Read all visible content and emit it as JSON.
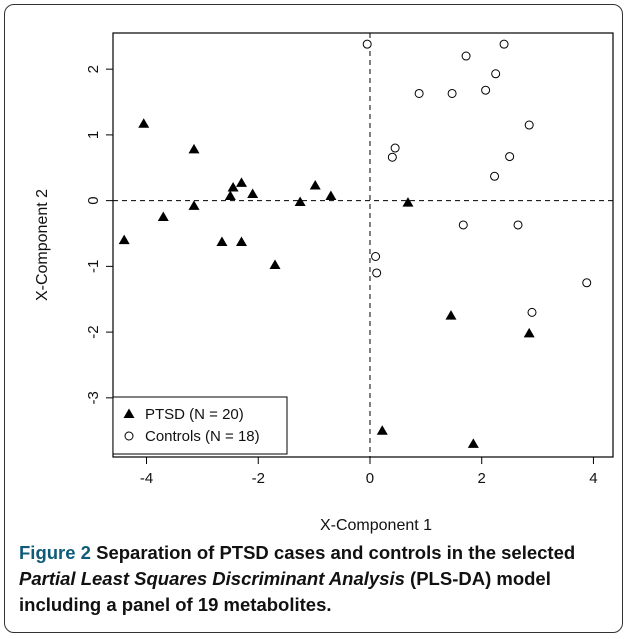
{
  "chart_data": {
    "type": "scatter",
    "xlabel": "X-Component 1",
    "ylabel": "X-Component 2",
    "xlim": [
      -4.6,
      4.35
    ],
    "ylim": [
      -3.9,
      2.55
    ],
    "x_ticks": [
      -4,
      -2,
      0,
      2,
      4
    ],
    "y_ticks": [
      -3,
      -2,
      -1,
      0,
      1,
      2
    ],
    "reference_lines": {
      "x": 0,
      "y": 0,
      "style": "dashed"
    },
    "legend_position": "bottom-left",
    "series": [
      {
        "name": "PTSD (N = 20)",
        "marker": "filled-triangle",
        "color": "#000000",
        "points": [
          [
            -4.05,
            1.17
          ],
          [
            -3.15,
            0.78
          ],
          [
            -4.4,
            -0.6
          ],
          [
            -3.7,
            -0.25
          ],
          [
            -3.15,
            -0.08
          ],
          [
            -2.65,
            -0.63
          ],
          [
            -2.3,
            -0.63
          ],
          [
            -2.45,
            0.2
          ],
          [
            -2.5,
            0.07
          ],
          [
            -2.3,
            0.27
          ],
          [
            -2.1,
            0.1
          ],
          [
            -1.7,
            -0.98
          ],
          [
            -1.25,
            -0.02
          ],
          [
            -0.98,
            0.23
          ],
          [
            -0.7,
            0.07
          ],
          [
            0.68,
            -0.03
          ],
          [
            1.45,
            -1.75
          ],
          [
            2.85,
            -2.02
          ],
          [
            0.22,
            -3.5
          ],
          [
            1.85,
            -3.7
          ]
        ]
      },
      {
        "name": "Controls (N = 18)",
        "marker": "open-circle",
        "color": "#000000",
        "points": [
          [
            -0.05,
            2.38
          ],
          [
            2.4,
            2.38
          ],
          [
            1.72,
            2.2
          ],
          [
            2.25,
            1.93
          ],
          [
            0.88,
            1.63
          ],
          [
            1.47,
            1.63
          ],
          [
            2.07,
            1.68
          ],
          [
            2.85,
            1.15
          ],
          [
            0.45,
            0.8
          ],
          [
            0.4,
            0.66
          ],
          [
            2.5,
            0.67
          ],
          [
            2.23,
            0.37
          ],
          [
            1.67,
            -0.37
          ],
          [
            2.65,
            -0.37
          ],
          [
            0.1,
            -0.85
          ],
          [
            0.12,
            -1.1
          ],
          [
            3.88,
            -1.25
          ],
          [
            2.9,
            -1.7
          ]
        ]
      }
    ]
  },
  "caption": {
    "label": "Figure 2",
    "text_before": " Separation of PTSD cases and controls in the selected ",
    "text_italic": "Partial Least Squares Discriminant Analysis",
    "text_after": " (PLS-DA) model including a panel of 19 metabolites."
  }
}
